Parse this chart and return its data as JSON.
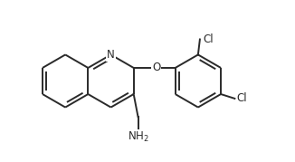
{
  "background_color": "#ffffff",
  "line_color": "#2a2a2a",
  "line_width": 1.4,
  "font_size": 8.5,
  "xlim": [
    -0.5,
    7.2
  ],
  "ylim": [
    -2.2,
    2.2
  ],
  "figsize": [
    3.26,
    1.79
  ],
  "dpi": 100
}
